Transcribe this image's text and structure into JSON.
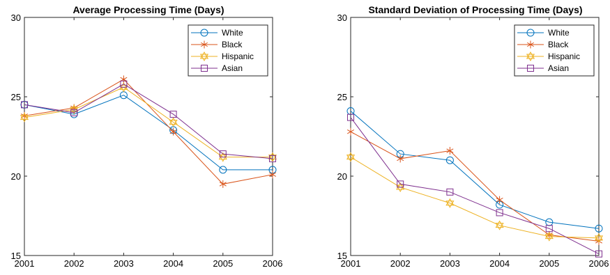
{
  "chart_data": [
    {
      "type": "line",
      "title": "Average Processing Time (Days)",
      "xlabel": "",
      "ylabel": "",
      "x": [
        2001,
        2002,
        2003,
        2004,
        2005,
        2006
      ],
      "xlim": [
        2001,
        2006
      ],
      "ylim": [
        15,
        30
      ],
      "yticks": [
        15,
        20,
        25,
        30
      ],
      "grid": false,
      "legend_position": "top-right",
      "series": [
        {
          "name": "White",
          "color": "#0072BD",
          "marker": "circle",
          "values": [
            24.5,
            23.9,
            25.1,
            22.9,
            20.4,
            20.4
          ]
        },
        {
          "name": "Black",
          "color": "#D95319",
          "marker": "asterisk",
          "values": [
            23.8,
            24.3,
            26.1,
            22.8,
            19.5,
            20.1
          ]
        },
        {
          "name": "Hispanic",
          "color": "#EDB120",
          "marker": "hexagram",
          "values": [
            23.7,
            24.2,
            25.6,
            23.4,
            21.2,
            21.2
          ]
        },
        {
          "name": "Asian",
          "color": "#7E2F8E",
          "marker": "square",
          "values": [
            24.5,
            24.0,
            25.8,
            23.9,
            21.4,
            21.1
          ]
        }
      ]
    },
    {
      "type": "line",
      "title": "Standard Deviation of Processing Time (Days)",
      "xlabel": "",
      "ylabel": "",
      "x": [
        2001,
        2002,
        2003,
        2004,
        2005,
        2006
      ],
      "xlim": [
        2001,
        2006
      ],
      "ylim": [
        15,
        30
      ],
      "yticks": [
        15,
        20,
        25,
        30
      ],
      "grid": false,
      "legend_position": "top-right",
      "series": [
        {
          "name": "White",
          "color": "#0072BD",
          "marker": "circle",
          "values": [
            24.1,
            21.4,
            21.0,
            18.2,
            17.1,
            16.7
          ]
        },
        {
          "name": "Black",
          "color": "#D95319",
          "marker": "asterisk",
          "values": [
            22.8,
            21.1,
            21.6,
            18.5,
            16.3,
            15.9
          ]
        },
        {
          "name": "Hispanic",
          "color": "#EDB120",
          "marker": "hexagram",
          "values": [
            21.2,
            19.3,
            18.3,
            16.9,
            16.2,
            16.1
          ]
        },
        {
          "name": "Asian",
          "color": "#7E2F8E",
          "marker": "square",
          "values": [
            23.7,
            19.5,
            19.0,
            17.7,
            16.7,
            15.1
          ]
        }
      ]
    }
  ]
}
